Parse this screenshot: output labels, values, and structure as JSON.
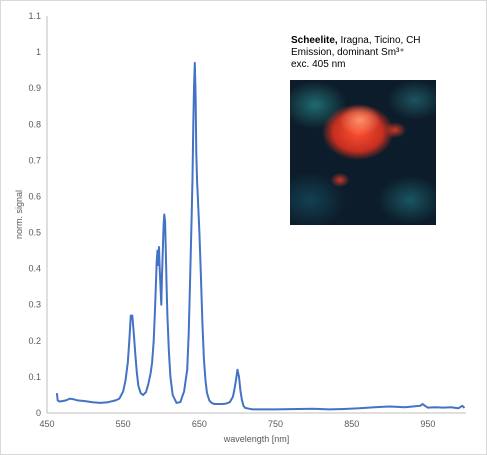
{
  "chart_data": {
    "type": "line",
    "xlabel": "wavelength [nm]",
    "ylabel": "norm. signal",
    "xlim": [
      450,
      1000
    ],
    "ylim": [
      0,
      1.1
    ],
    "xticks": [
      450,
      550,
      650,
      750,
      850,
      950
    ],
    "xtick_labels": [
      "450",
      "550",
      "650",
      "750",
      "850",
      "950"
    ],
    "yticks": [
      0,
      0.1,
      0.2,
      0.3,
      0.4,
      0.5,
      0.6,
      0.7,
      0.8,
      0.9,
      1,
      1.1
    ],
    "ytick_labels": [
      "0",
      "0.1",
      "0.2",
      "0.3",
      "0.4",
      "0.5",
      "0.6",
      "0.7",
      "0.8",
      "0.9",
      "1",
      "1.1"
    ],
    "grid": false,
    "line_color": "#4472c4",
    "series": [
      {
        "x": [
          463,
          464,
          466,
          470,
          475,
          480,
          485,
          490,
          500,
          510,
          520,
          530,
          540,
          545,
          550,
          553,
          556,
          558,
          560,
          562,
          564,
          566,
          568,
          570,
          573,
          576,
          580,
          583,
          586,
          588,
          590,
          592,
          594,
          595,
          596,
          597,
          598,
          599,
          600,
          601,
          602,
          603,
          604,
          605,
          606,
          607,
          608,
          610,
          612,
          615,
          620,
          625,
          630,
          634,
          636,
          638,
          640,
          641,
          642,
          643,
          644,
          645,
          646,
          647,
          648,
          650,
          652,
          654,
          656,
          658,
          660,
          663,
          666,
          670,
          675,
          680,
          685,
          690,
          694,
          696,
          698,
          700,
          702,
          704,
          706,
          708,
          710,
          715,
          720,
          730,
          750,
          780,
          800,
          820,
          840,
          860,
          880,
          900,
          920,
          940,
          943,
          946,
          950,
          960,
          970,
          980,
          990,
          995,
          998
        ],
        "y": [
          0.055,
          0.035,
          0.032,
          0.033,
          0.035,
          0.04,
          0.038,
          0.035,
          0.033,
          0.03,
          0.028,
          0.03,
          0.035,
          0.04,
          0.06,
          0.09,
          0.14,
          0.2,
          0.27,
          0.27,
          0.22,
          0.16,
          0.11,
          0.075,
          0.055,
          0.05,
          0.058,
          0.08,
          0.11,
          0.14,
          0.2,
          0.3,
          0.42,
          0.45,
          0.41,
          0.46,
          0.4,
          0.35,
          0.3,
          0.38,
          0.45,
          0.52,
          0.55,
          0.53,
          0.45,
          0.35,
          0.27,
          0.17,
          0.1,
          0.05,
          0.028,
          0.03,
          0.06,
          0.12,
          0.22,
          0.38,
          0.55,
          0.65,
          0.8,
          0.9,
          0.97,
          0.88,
          0.72,
          0.64,
          0.6,
          0.5,
          0.38,
          0.25,
          0.15,
          0.09,
          0.055,
          0.035,
          0.028,
          0.025,
          0.025,
          0.025,
          0.026,
          0.03,
          0.045,
          0.065,
          0.09,
          0.12,
          0.1,
          0.06,
          0.035,
          0.02,
          0.014,
          0.012,
          0.01,
          0.01,
          0.01,
          0.011,
          0.012,
          0.01,
          0.011,
          0.013,
          0.016,
          0.018,
          0.016,
          0.02,
          0.025,
          0.02,
          0.015,
          0.016,
          0.015,
          0.016,
          0.013,
          0.02,
          0.014
        ]
      }
    ],
    "annotations": {
      "caption_bold": "Scheelite,",
      "caption_line1_rest": " Iragna, Ticino, CH",
      "caption_line2": "Emission, dominant Sm³⁺",
      "caption_line3": "exc. 405 nm"
    }
  }
}
